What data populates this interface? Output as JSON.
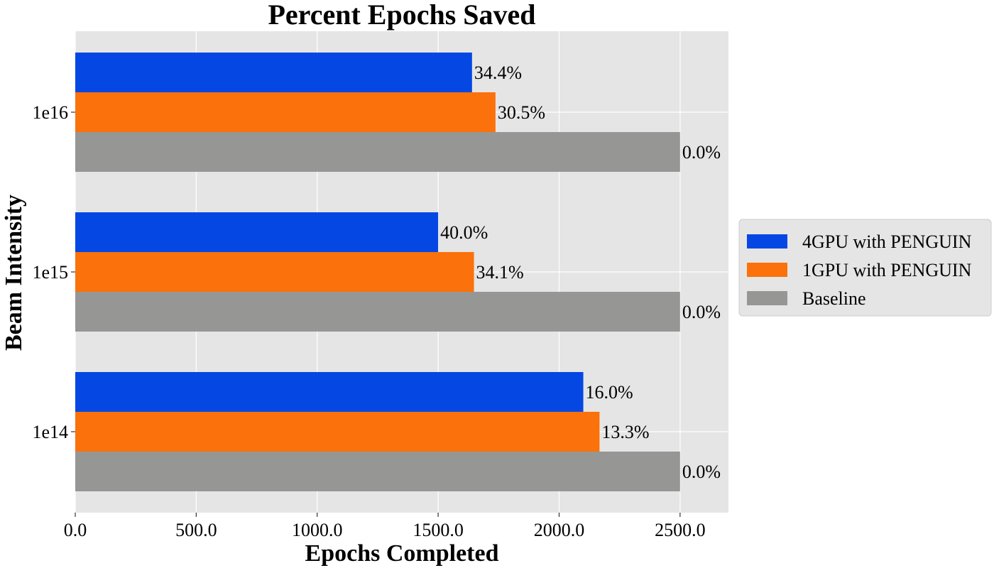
{
  "chart_data": {
    "type": "bar",
    "orientation": "horizontal",
    "title": "Percent Epochs Saved",
    "xlabel": "Epochs Completed",
    "ylabel": "Beam Intensity",
    "categories": [
      "1e16",
      "1e15",
      "1e14"
    ],
    "xlim": [
      0,
      2700
    ],
    "xticks": [
      0,
      500,
      1000,
      1500,
      2000,
      2500
    ],
    "xtick_labels": [
      "0.0",
      "500.0",
      "1000.0",
      "1500.0",
      "2000.0",
      "2500.0"
    ],
    "grid": true,
    "legend_position": "right",
    "series": [
      {
        "name": "4GPU with PENGUIN",
        "color": "#0547e3",
        "values": [
          1640,
          1500,
          2100
        ],
        "labels": [
          "34.4%",
          "40.0%",
          "16.0%"
        ]
      },
      {
        "name": "1GPU with PENGUIN",
        "color": "#fb710b",
        "values": [
          1737,
          1648,
          2167
        ],
        "labels": [
          "30.5%",
          "34.1%",
          "13.3%"
        ]
      },
      {
        "name": "Baseline",
        "color": "#969795",
        "values": [
          2500,
          2500,
          2500
        ],
        "labels": [
          "0.0%",
          "0.0%",
          "0.0%"
        ]
      }
    ]
  }
}
